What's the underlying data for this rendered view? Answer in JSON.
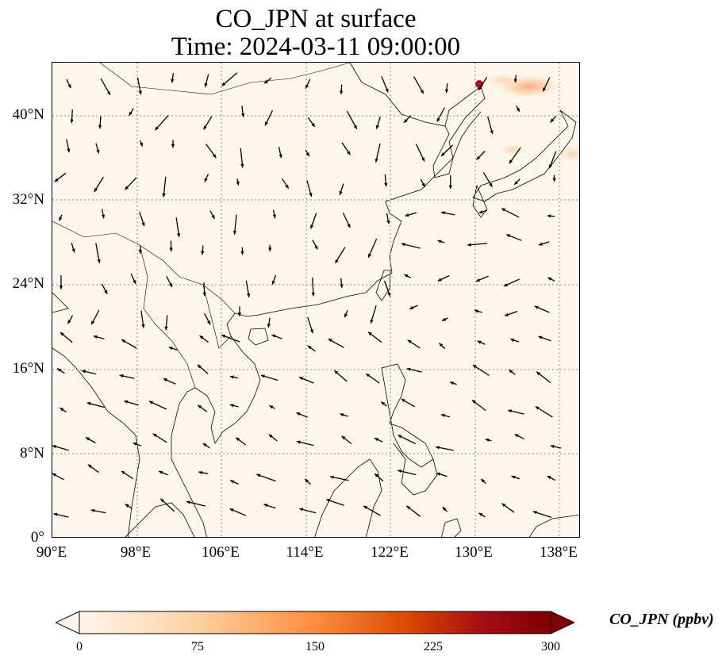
{
  "title": {
    "line1": "CO_JPN at surface",
    "line2": "Time: 2024-03-11 09:00:00"
  },
  "map": {
    "lon_range": [
      90,
      140
    ],
    "lat_range": [
      0,
      45
    ],
    "x_ticks": [
      "90°E",
      "98°E",
      "106°E",
      "114°E",
      "122°E",
      "130°E",
      "138°E"
    ],
    "y_ticks": [
      "0°",
      "8°N",
      "16°N",
      "24°N",
      "32°N",
      "40°N"
    ],
    "gridlines": "dotted",
    "background_color": "#fdf6ec",
    "coastline_color": "#000000",
    "vector_color": "#000000"
  },
  "colorbar": {
    "label": "CO_JPN (ppbv)",
    "ticks": [
      "0",
      "75",
      "150",
      "225",
      "300"
    ],
    "range": [
      0,
      300
    ],
    "colormap": [
      "#fff5eb",
      "#fdd0a2",
      "#fd8d3c",
      "#d94801",
      "#a50f15",
      "#7f0000"
    ],
    "extend": "both"
  }
}
